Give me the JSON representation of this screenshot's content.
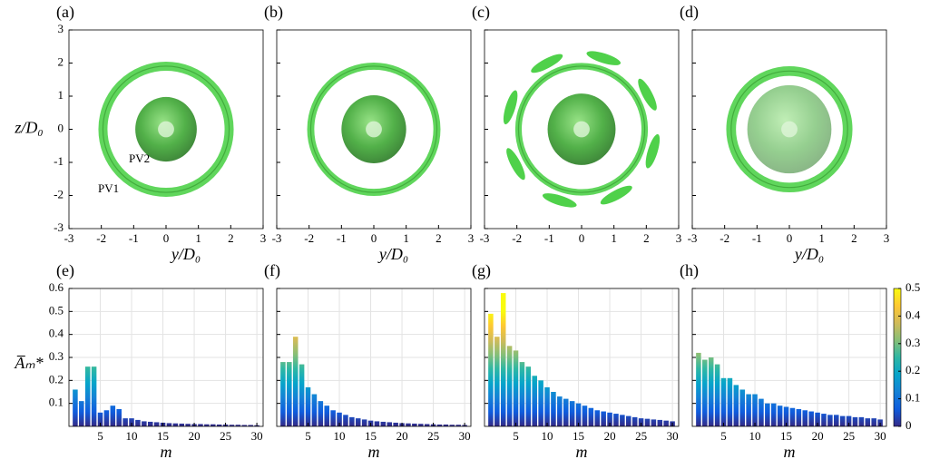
{
  "chart_data": [
    {
      "type": "isosurface",
      "panel_label": "(a)",
      "xlim": [
        -3,
        3
      ],
      "ylim": [
        -3,
        3
      ],
      "xticks": [
        -3,
        -2,
        -1,
        0,
        1,
        2,
        3
      ],
      "yticks": [
        -3,
        -2,
        -1,
        0,
        1,
        2,
        3
      ],
      "yticklabels": true,
      "xlabel": "y/D₀",
      "ylabel": "z/D₀",
      "color": "#4fd14a",
      "annotations": [
        "PV2",
        "PV1"
      ]
    },
    {
      "type": "isosurface",
      "panel_label": "(b)",
      "xlim": [
        -3,
        3
      ],
      "ylim": [
        -3,
        3
      ],
      "xticks": [
        -3,
        -2,
        -1,
        0,
        1,
        2,
        3
      ],
      "yticks": [
        -3,
        -2,
        -1,
        0,
        1,
        2,
        3
      ],
      "yticklabels": false,
      "xlabel": "y/D₀",
      "color": "#4fd14a"
    },
    {
      "type": "isosurface",
      "panel_label": "(c)",
      "xlim": [
        -3,
        3
      ],
      "ylim": [
        -3,
        3
      ],
      "xticks": [
        -3,
        -2,
        -1,
        0,
        1,
        2,
        3
      ],
      "yticks": [
        -3,
        -2,
        -1,
        0,
        1,
        2,
        3
      ],
      "yticklabels": false,
      "color": "#4fd14a"
    },
    {
      "type": "isosurface",
      "panel_label": "(d)",
      "xlim": [
        -3,
        3
      ],
      "ylim": [
        -3,
        3
      ],
      "xticks": [
        -3,
        -2,
        -1,
        0,
        1,
        2,
        3
      ],
      "yticks": [
        -3,
        -2,
        -1,
        0,
        1,
        2,
        3
      ],
      "yticklabels": false,
      "xlabel": "y/D₀",
      "color": "#4fd14a"
    },
    {
      "type": "bar",
      "panel_label": "(e)",
      "xlim": [
        0,
        31
      ],
      "ylim": [
        0,
        0.6
      ],
      "xticks": [
        5,
        10,
        15,
        20,
        25,
        30
      ],
      "yticks": [
        0.1,
        0.2,
        0.3,
        0.4,
        0.5,
        0.6
      ],
      "yticklabels": true,
      "grid": true,
      "xlabel": "m",
      "ylabel": "A̅ₘ*",
      "x": [
        1,
        2,
        3,
        4,
        5,
        6,
        7,
        8,
        9,
        10,
        11,
        12,
        13,
        14,
        15,
        16,
        17,
        18,
        19,
        20,
        21,
        22,
        23,
        24,
        25,
        26,
        27,
        28,
        29,
        30
      ],
      "values": [
        0.16,
        0.11,
        0.26,
        0.26,
        0.06,
        0.07,
        0.09,
        0.075,
        0.035,
        0.035,
        0.028,
        0.022,
        0.02,
        0.018,
        0.016,
        0.014,
        0.013,
        0.012,
        0.011,
        0.01,
        0.01,
        0.009,
        0.009,
        0.008,
        0.008,
        0.007,
        0.007,
        0.006,
        0.006,
        0.005
      ]
    },
    {
      "type": "bar",
      "panel_label": "(f)",
      "xlim": [
        0,
        31
      ],
      "ylim": [
        0,
        0.6
      ],
      "xticks": [
        5,
        10,
        15,
        20,
        25,
        30
      ],
      "yticks": [
        0.1,
        0.2,
        0.3,
        0.4,
        0.5,
        0.6
      ],
      "yticklabels": false,
      "grid": true,
      "xlabel": "m",
      "x": [
        1,
        2,
        3,
        4,
        5,
        6,
        7,
        8,
        9,
        10,
        11,
        12,
        13,
        14,
        15,
        16,
        17,
        18,
        19,
        20,
        21,
        22,
        23,
        24,
        25,
        26,
        27,
        28,
        29,
        30
      ],
      "values": [
        0.28,
        0.28,
        0.39,
        0.27,
        0.17,
        0.14,
        0.11,
        0.09,
        0.07,
        0.06,
        0.05,
        0.04,
        0.035,
        0.03,
        0.025,
        0.022,
        0.02,
        0.018,
        0.016,
        0.014,
        0.013,
        0.012,
        0.011,
        0.01,
        0.009,
        0.008,
        0.008,
        0.007,
        0.007,
        0.006
      ]
    },
    {
      "type": "bar",
      "panel_label": "(g)",
      "xlim": [
        0,
        31
      ],
      "ylim": [
        0,
        0.6
      ],
      "xticks": [
        5,
        10,
        15,
        20,
        25,
        30
      ],
      "yticks": [
        0.1,
        0.2,
        0.3,
        0.4,
        0.5,
        0.6
      ],
      "yticklabels": false,
      "grid": true,
      "xlabel": "m",
      "x": [
        1,
        2,
        3,
        4,
        5,
        6,
        7,
        8,
        9,
        10,
        11,
        12,
        13,
        14,
        15,
        16,
        17,
        18,
        19,
        20,
        21,
        22,
        23,
        24,
        25,
        26,
        27,
        28,
        29,
        30
      ],
      "values": [
        0.49,
        0.39,
        0.58,
        0.35,
        0.33,
        0.28,
        0.26,
        0.22,
        0.2,
        0.17,
        0.15,
        0.13,
        0.12,
        0.11,
        0.1,
        0.09,
        0.08,
        0.07,
        0.065,
        0.06,
        0.055,
        0.05,
        0.045,
        0.04,
        0.035,
        0.033,
        0.03,
        0.028,
        0.025,
        0.022
      ]
    },
    {
      "type": "bar",
      "panel_label": "(h)",
      "xlim": [
        0,
        31
      ],
      "ylim": [
        0,
        0.6
      ],
      "xticks": [
        5,
        10,
        15,
        20,
        25,
        30
      ],
      "yticks": [
        0.1,
        0.2,
        0.3,
        0.4,
        0.5,
        0.6
      ],
      "yticklabels": false,
      "grid": true,
      "xlabel": "m",
      "x": [
        1,
        2,
        3,
        4,
        5,
        6,
        7,
        8,
        9,
        10,
        11,
        12,
        13,
        14,
        15,
        16,
        17,
        18,
        19,
        20,
        21,
        22,
        23,
        24,
        25,
        26,
        27,
        28,
        29,
        30
      ],
      "values": [
        0.32,
        0.29,
        0.3,
        0.27,
        0.21,
        0.21,
        0.18,
        0.16,
        0.14,
        0.14,
        0.12,
        0.1,
        0.1,
        0.09,
        0.085,
        0.08,
        0.075,
        0.07,
        0.065,
        0.06,
        0.055,
        0.05,
        0.05,
        0.045,
        0.045,
        0.04,
        0.04,
        0.035,
        0.035,
        0.03
      ],
      "colorbar": {
        "lim": [
          0,
          0.5
        ],
        "ticks": [
          0,
          0.1,
          0.2,
          0.3,
          0.4,
          0.5
        ]
      }
    }
  ]
}
